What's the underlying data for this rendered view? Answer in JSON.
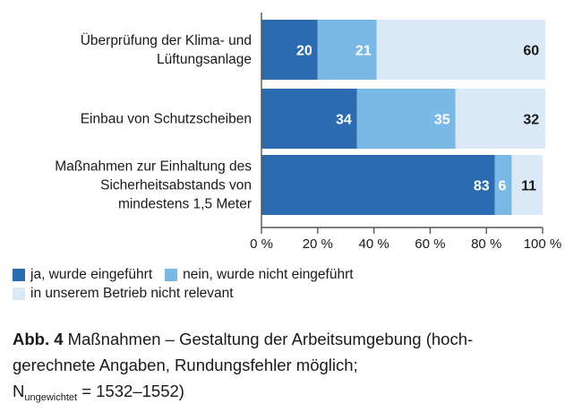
{
  "chart_data": {
    "type": "bar",
    "orientation": "horizontal",
    "stacked": true,
    "categories": [
      "Überprüfung der Klima- und Lüftungsanlage",
      "Einbau von Schutzscheiben",
      "Maßnahmen zur Einhaltung des Sicherheitsabstands von mindestens 1,5 Meter"
    ],
    "category_lines": [
      [
        "Überprüfung der Klima- und",
        "Lüftungsanlage"
      ],
      [
        "Einbau von Schutzscheiben"
      ],
      [
        "Maßnahmen zur Einhaltung des",
        "Sicherheitsabstands von",
        "mindestens 1,5 Meter"
      ]
    ],
    "series": [
      {
        "name": "ja, wurde eingeführt",
        "values": [
          20,
          34,
          83
        ],
        "color": "#2b6cb0"
      },
      {
        "name": "nein, wurde nicht eingeführt",
        "values": [
          21,
          35,
          6
        ],
        "color": "#7ab8e6"
      },
      {
        "name": "in unserem Betrieb nicht relevant",
        "values": [
          60,
          32,
          11
        ],
        "color": "#dbe9f6"
      }
    ],
    "xlim": [
      0,
      100
    ],
    "x_ticks": [
      0,
      20,
      40,
      60,
      80,
      100
    ],
    "x_tick_labels": [
      "0 %",
      "20 %",
      "40 %",
      "60 %",
      "80 %",
      "100 %"
    ],
    "grid": false,
    "legend_position": "bottom-left"
  },
  "caption": {
    "label": "Abb. 4",
    "text_line1": " Maßnahmen – Gestaltung der Arbeitsumgebung (hoch-",
    "text_line2": "gerechnete Angaben, Rundungsfehler möglich;",
    "n_symbol": "N",
    "n_subscript": "ungewichtet",
    "n_value": " = 1532–1552)"
  }
}
